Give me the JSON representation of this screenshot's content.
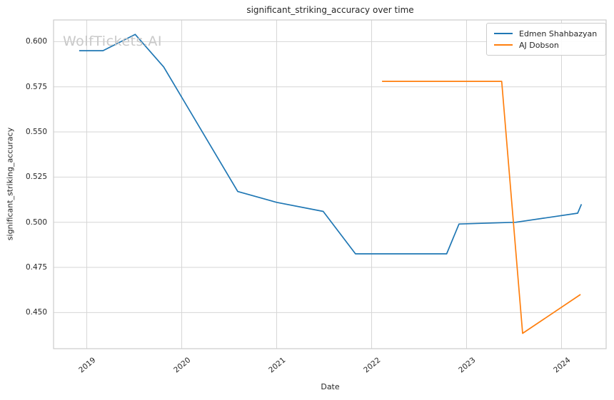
{
  "watermark": "WolfTickets.AI",
  "colors": {
    "background": "#ffffff",
    "grid": "#d6d6d6",
    "spine": "#cccccc",
    "text": "#262626",
    "watermark": "#c9c9c9"
  },
  "chart_data": {
    "type": "line",
    "title": "significant_striking_accuracy over time",
    "xlabel": "Date",
    "ylabel": "significant_striking_accuracy",
    "xlim": [
      2018.65,
      2024.47
    ],
    "ylim": [
      0.43,
      0.612
    ],
    "xticks": [
      2019,
      2020,
      2021,
      2022,
      2023,
      2024
    ],
    "yticks": [
      0.45,
      0.475,
      0.5,
      0.525,
      0.55,
      0.575,
      0.6
    ],
    "grid": true,
    "legend_position": "upper right",
    "series": [
      {
        "name": "Edmen Shahbazyan",
        "color": "#1f77b4",
        "x": [
          2018.92,
          2019.17,
          2019.51,
          2019.81,
          2020.59,
          2021.0,
          2021.49,
          2021.83,
          2022.79,
          2022.92,
          2023.52,
          2024.17,
          2024.21
        ],
        "y": [
          0.595,
          0.595,
          0.604,
          0.586,
          0.517,
          0.511,
          0.506,
          0.4825,
          0.4825,
          0.499,
          0.5,
          0.505,
          0.51
        ]
      },
      {
        "name": "AJ Dobson",
        "color": "#ff7f0e",
        "x": [
          2022.11,
          2023.37,
          2023.59,
          2024.2
        ],
        "y": [
          0.578,
          0.578,
          0.4385,
          0.46
        ]
      }
    ]
  }
}
